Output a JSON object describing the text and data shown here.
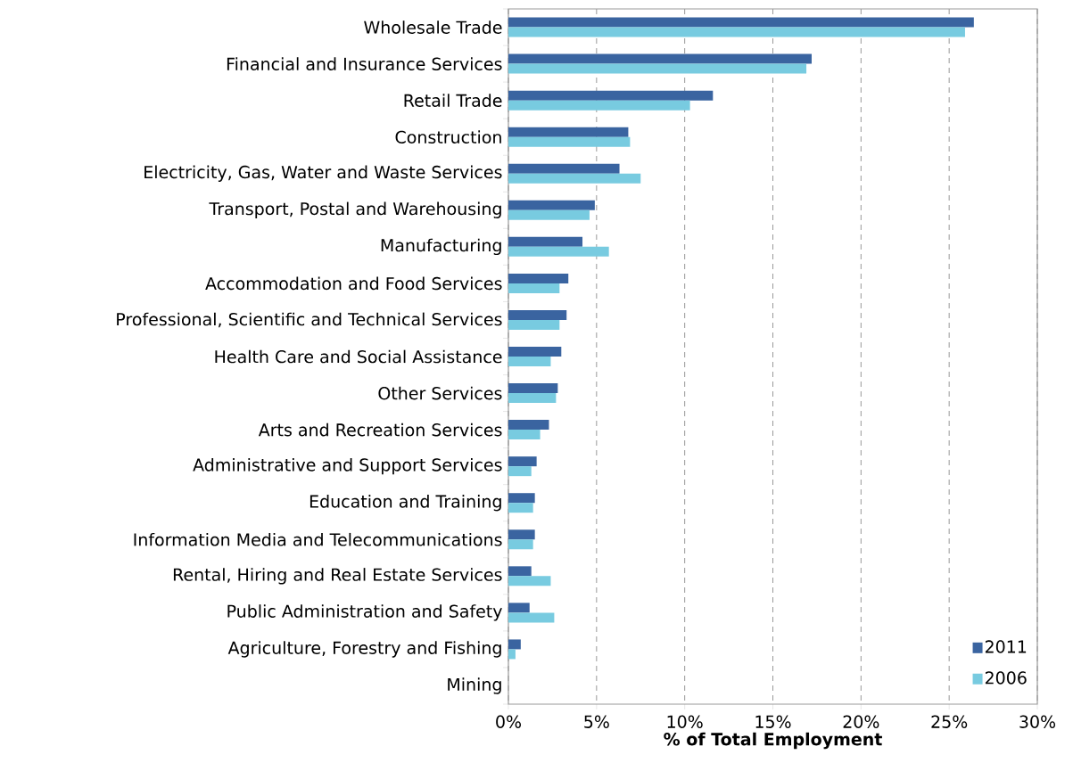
{
  "chart_data": {
    "type": "bar",
    "orientation": "horizontal",
    "xlabel": "% of Total Employment",
    "categories": [
      "Wholesale Trade",
      "Financial and Insurance Services",
      "Retail Trade",
      "Construction",
      "Electricity, Gas, Water and Waste Services",
      "Transport, Postal and Warehousing",
      "Manufacturing",
      "Accommodation and Food Services",
      "Professional, Scientific and Technical Services",
      "Health Care and Social Assistance",
      "Other Services",
      "Arts and Recreation Services",
      "Administrative and Support Services",
      "Education and Training",
      "Information Media and Telecommunications",
      "Rental, Hiring and Real Estate Services",
      "Public Administration and Safety",
      "Agriculture, Forestry and Fishing",
      "Mining"
    ],
    "series": [
      {
        "name": "2011",
        "color": "#3a64a0",
        "values": [
          26.4,
          17.2,
          11.6,
          6.8,
          6.3,
          4.9,
          4.2,
          3.4,
          3.3,
          3.0,
          2.8,
          2.3,
          1.6,
          1.5,
          1.5,
          1.3,
          1.2,
          0.7,
          0
        ]
      },
      {
        "name": "2006",
        "color": "#78cbe0",
        "values": [
          25.9,
          16.9,
          10.3,
          6.9,
          7.5,
          4.6,
          5.7,
          2.9,
          2.9,
          2.4,
          2.7,
          1.8,
          1.3,
          1.4,
          1.4,
          2.4,
          2.6,
          0.4,
          0
        ]
      }
    ],
    "xlim": [
      0,
      30
    ],
    "xticks": [
      {
        "value": 0,
        "label": "0%"
      },
      {
        "value": 5,
        "label": "5%"
      },
      {
        "value": 10,
        "label": "10%"
      },
      {
        "value": 15,
        "label": "15%"
      },
      {
        "value": 20,
        "label": "20%"
      },
      {
        "value": 25,
        "label": "25%"
      },
      {
        "value": 30,
        "label": "30%"
      }
    ],
    "grid": "x",
    "legend": "bottom right"
  }
}
